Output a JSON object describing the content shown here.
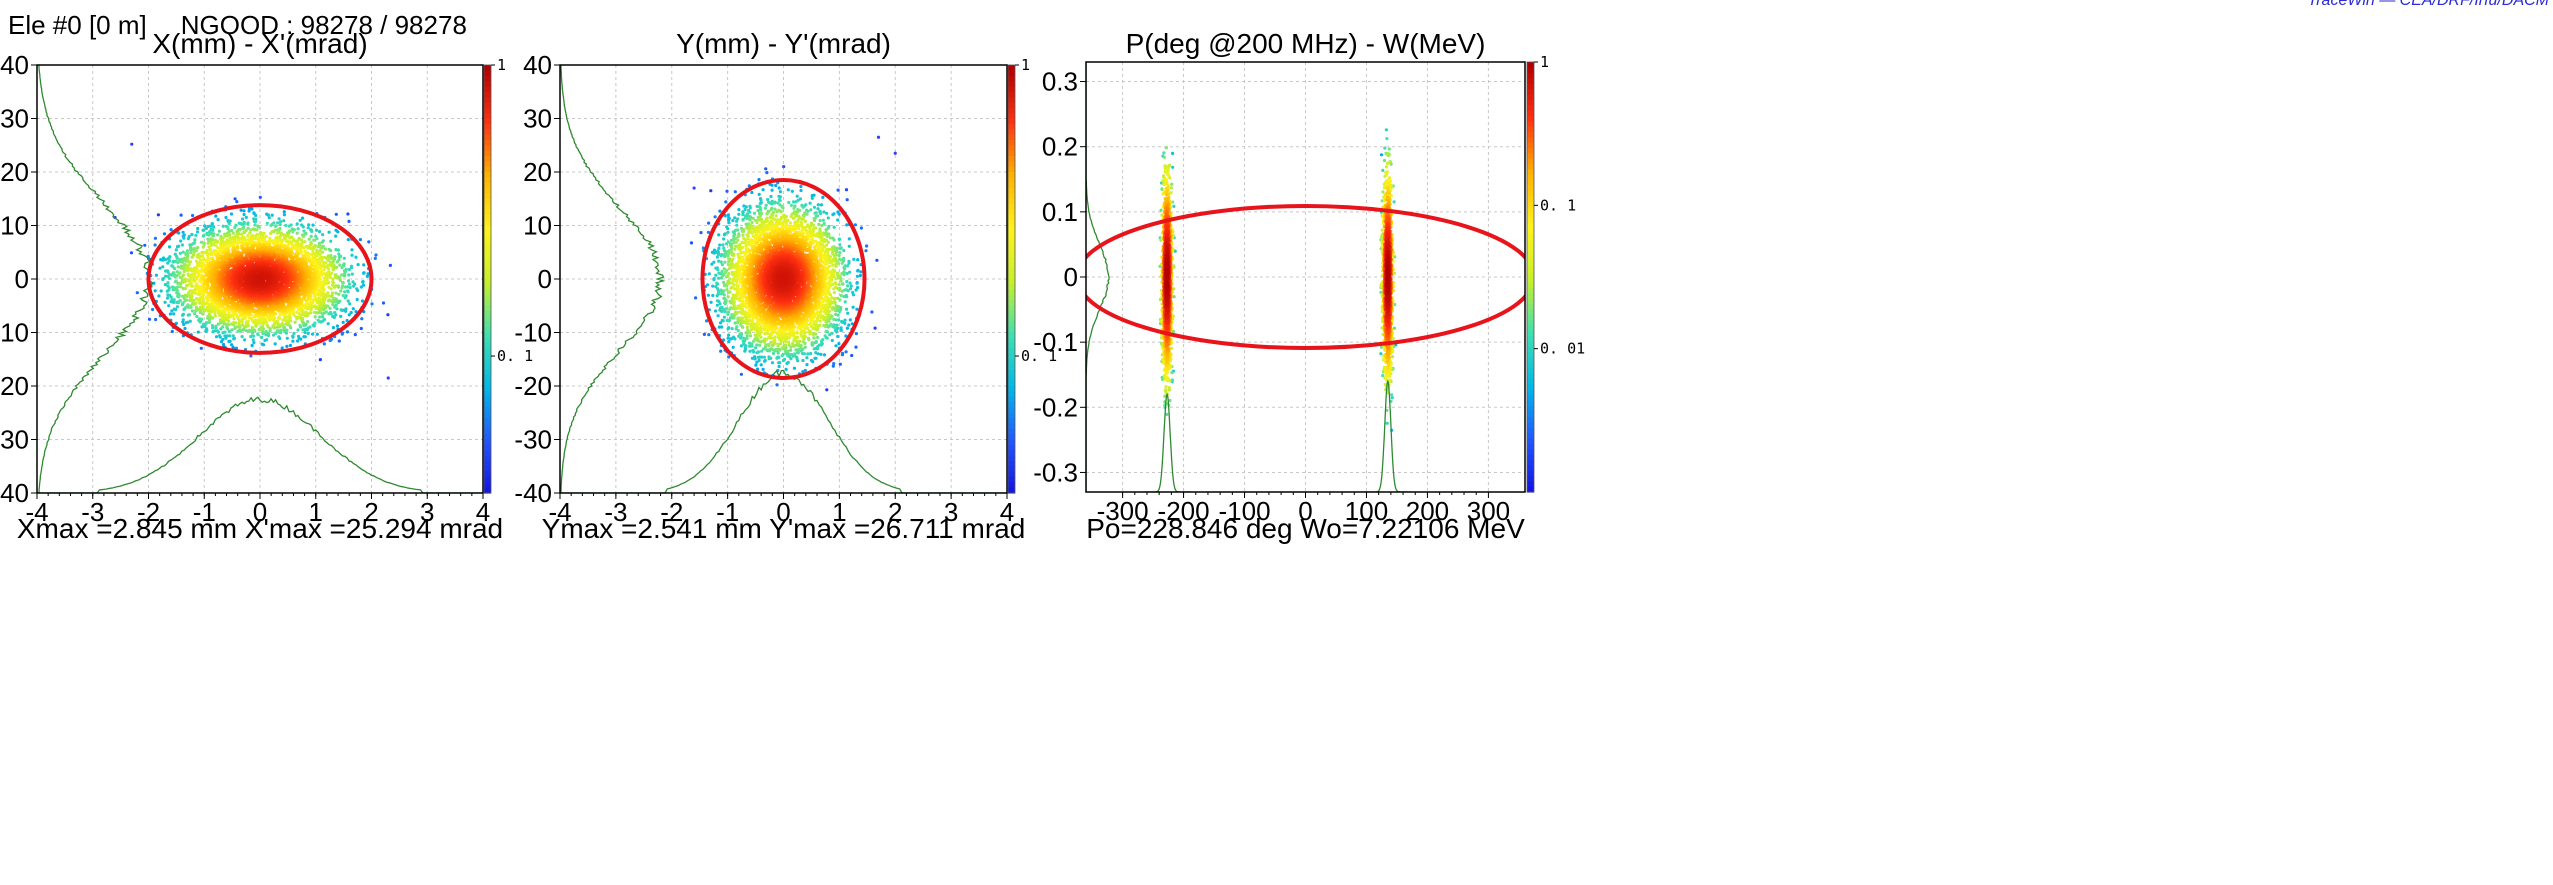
{
  "header": {
    "element": "Ele #0 [0 m]",
    "ngood": "NGOOD : 98278 / 98278"
  },
  "corner_note": "TraceWin — CEA/DRF/Irfu/DACM",
  "colors": {
    "ellipse": "#e8141b",
    "profile": "#2f8a2f",
    "grid": "#c8c8c8",
    "colormap": [
      "#1010e0",
      "#2255ff",
      "#00b8e8",
      "#3ee0b0",
      "#c8f02a",
      "#fff21a",
      "#ffb000",
      "#ff3010",
      "#b00000"
    ]
  },
  "chart_data": [
    {
      "type": "scatter",
      "name": "x-xprime",
      "title": "X(mm) - X'(mrad)",
      "footer": "Xmax =2.845 mm  X'max =25.294 mrad",
      "xlim": [
        -4,
        4
      ],
      "ylim": [
        -40,
        40
      ],
      "xticks": [
        -4,
        -3,
        -2,
        -1,
        0,
        1,
        2,
        3,
        4
      ],
      "yticks": [
        40,
        30,
        20,
        10,
        0,
        -10,
        -20,
        -30,
        -40
      ],
      "grid": true,
      "ellipse": {
        "cx": 0,
        "cy": 0,
        "rx": 2.0,
        "ry": 13.8,
        "tilt_deg": 0
      },
      "cloud": {
        "cx": 0,
        "cy": 0,
        "rx": 2.45,
        "ry": 16
      },
      "colorbar": {
        "scale": "linear",
        "labels": [
          {
            "text": "1",
            "v": 1.0
          },
          {
            "text": "0. 1",
            "v": 0.1
          }
        ]
      },
      "profiles": {
        "bottom": {
          "center": 0,
          "sigma": 1.1,
          "peak_y": -22.5,
          "base_y": -40,
          "cut": 2.9
        },
        "left": {
          "center": 0,
          "sigma": 14,
          "peak_x": -2.0,
          "base_x": -4,
          "cut": 40
        }
      },
      "stray_points": [
        [
          -2.3,
          25.2
        ],
        [
          2.3,
          -18.5
        ],
        [
          -2.6,
          11.5
        ]
      ]
    },
    {
      "type": "scatter",
      "name": "y-yprime",
      "title": "Y(mm) - Y'(mrad)",
      "footer": "Ymax =2.541 mm  Y'max =26.711 mrad",
      "xlim": [
        -4,
        4
      ],
      "ylim": [
        -40,
        40
      ],
      "xticks": [
        -4,
        -3,
        -2,
        -1,
        0,
        1,
        2,
        3,
        4
      ],
      "yticks": [
        40,
        30,
        20,
        10,
        0,
        -10,
        -20,
        -30,
        -40
      ],
      "grid": true,
      "ellipse": {
        "cx": 0,
        "cy": 0,
        "rx": 1.45,
        "ry": 18.5,
        "tilt_deg": 0
      },
      "cloud": {
        "cx": 0,
        "cy": 0,
        "rx": 1.75,
        "ry": 22
      },
      "colorbar": {
        "scale": "linear",
        "labels": [
          {
            "text": "1",
            "v": 1.0
          },
          {
            "text": "0. 1",
            "v": 0.1
          }
        ]
      },
      "profiles": {
        "bottom": {
          "center": 0,
          "sigma": 0.8,
          "peak_y": -17.5,
          "base_y": -40,
          "cut": 2.1
        },
        "left": {
          "center": 0,
          "sigma": 13,
          "peak_x": -2.2,
          "base_x": -4,
          "cut": 40
        }
      },
      "stray_points": [
        [
          1.7,
          26.5
        ],
        [
          2.0,
          23.5
        ],
        [
          -1.6,
          17.0
        ]
      ]
    },
    {
      "type": "scatter",
      "name": "phase-energy",
      "title": "P(deg @200 MHz) - W(MeV)",
      "footer": "Po=228.846 deg  Wo=7.22106 MeV",
      "xlim": [
        -360,
        360
      ],
      "ylim": [
        -0.33,
        0.33
      ],
      "xticks": [
        -300,
        -200,
        -100,
        0,
        100,
        200,
        300
      ],
      "yticks": [
        0.3,
        0.2,
        0.1,
        0,
        -0.1,
        -0.2,
        -0.3
      ],
      "ytick_labels": [
        "0.3",
        "0.2",
        "0.1",
        "0",
        "-0.1",
        "-0.2",
        "-0.3"
      ],
      "grid": true,
      "ellipse": {
        "cx": 0,
        "cy": 0,
        "rx": 375,
        "ry": 0.109,
        "tilt_deg": 0
      },
      "clouds": [
        {
          "cx": -227,
          "cy": 0,
          "rx": 14,
          "ry": 0.25
        },
        {
          "cx": 135,
          "cy": 0,
          "rx": 14,
          "ry": 0.25
        }
      ],
      "colorbar": {
        "scale": "log",
        "labels": [
          {
            "text": "1",
            "v": 1.0
          },
          {
            "text": "0. 1",
            "v": 0.1
          },
          {
            "text": "0. 01",
            "v": 0.01
          }
        ]
      },
      "profiles": {
        "bottom_peaks": [
          {
            "center": -227,
            "sigma": 5,
            "peak_y": -0.18
          },
          {
            "center": 135,
            "sigma": 5,
            "peak_y": -0.16
          }
        ],
        "bottom_base_y": -0.33,
        "left": {
          "center": 0,
          "sigma": 0.05,
          "peak_x": -323,
          "base_x": -360,
          "cut": 0.15
        }
      },
      "stray_points": []
    }
  ]
}
